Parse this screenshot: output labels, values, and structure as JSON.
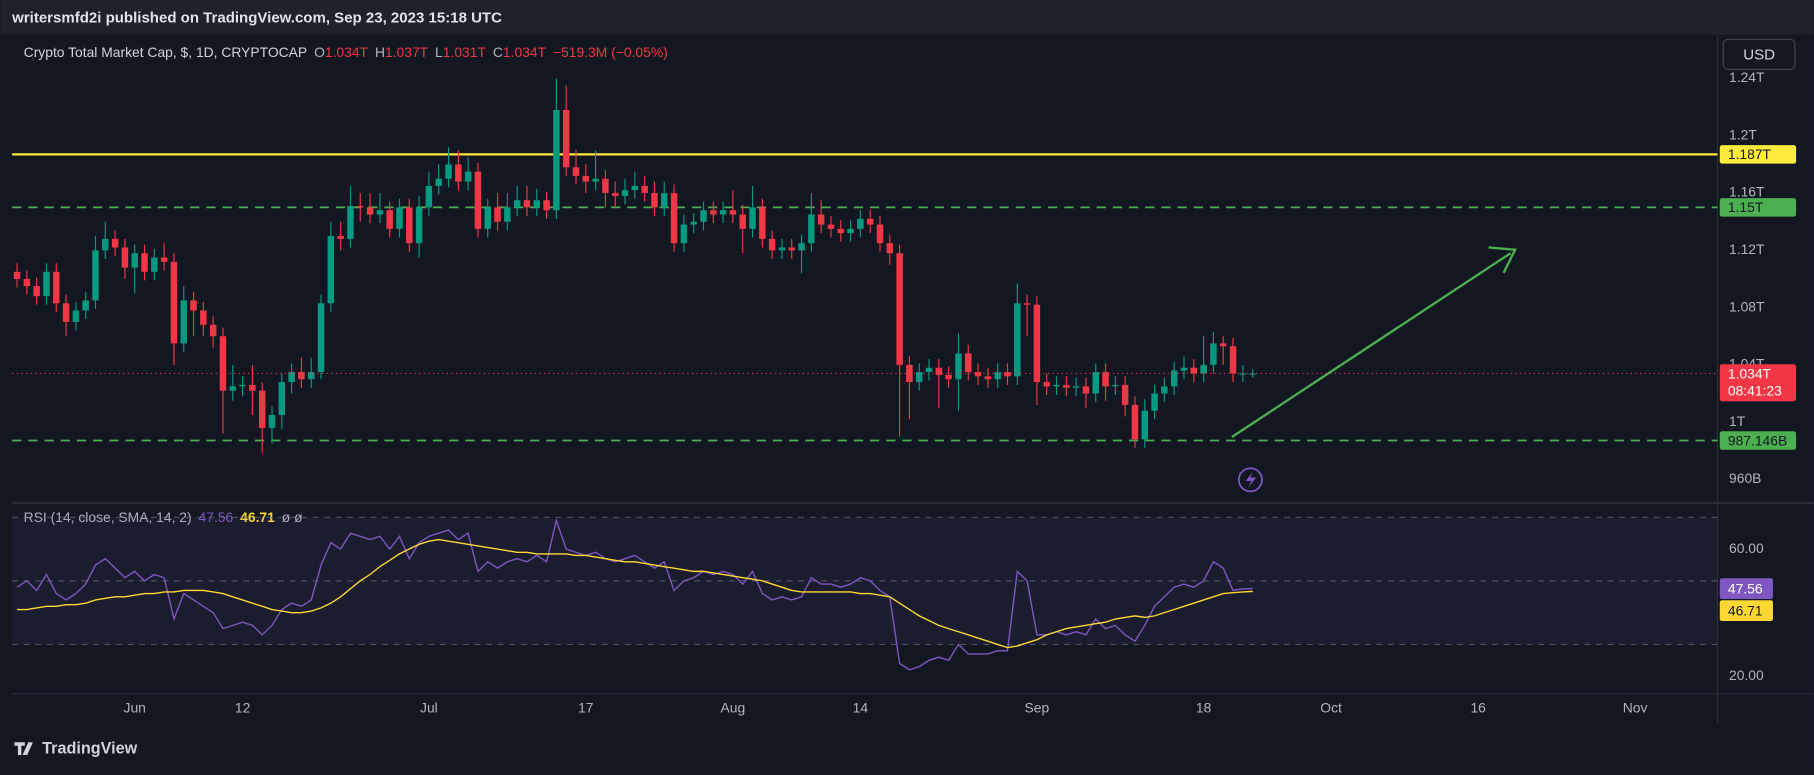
{
  "header": {
    "published": "writersmfd2i published on TradingView.com, Sep 23, 2023 15:18 UTC",
    "currency": "USD"
  },
  "footer": {
    "brand": "TradingView"
  },
  "chart_data": [
    {
      "type": "candlestick",
      "title": "Crypto Total Market Cap, $, 1D, CRYPTOCAP",
      "legend": [
        {
          "key": "O",
          "value": "1.034T"
        },
        {
          "key": "H",
          "value": "1.037T"
        },
        {
          "key": "L",
          "value": "1.031T"
        },
        {
          "key": "C",
          "value": "1.034T"
        }
      ],
      "change": "−519.3M (−0.05%)",
      "up_color": "#089981",
      "down_color": "#f23645",
      "grid": false,
      "open": [
        1.105,
        1.1,
        1.095,
        1.088,
        1.105,
        1.083,
        1.07,
        1.078,
        1.085,
        1.12,
        1.128,
        1.122,
        1.108,
        1.118,
        1.105,
        1.115,
        1.112,
        1.055,
        1.085,
        1.078,
        1.068,
        1.06,
        1.022,
        1.025,
        1.026,
        1.022,
        0.996,
        1.005,
        1.028,
        1.035,
        1.03,
        1.035,
        1.083,
        1.13,
        1.128,
        1.151,
        1.15,
        1.145,
        1.148,
        1.135,
        1.15,
        1.125,
        1.15,
        1.165,
        1.17,
        1.18,
        1.168,
        1.175,
        1.135,
        1.15,
        1.14,
        1.15,
        1.155,
        1.15,
        1.155,
        1.148,
        1.218,
        1.178,
        1.172,
        1.168,
        1.17,
        1.16,
        1.158,
        1.162,
        1.165,
        1.16,
        1.15,
        1.16,
        1.125,
        1.138,
        1.14,
        1.148,
        1.145,
        1.148,
        1.145,
        1.135,
        1.15,
        1.128,
        1.12,
        1.122,
        1.12,
        1.125,
        1.145,
        1.138,
        1.135,
        1.132,
        1.135,
        1.142,
        1.138,
        1.125,
        1.118,
        1.04,
        1.028,
        1.035,
        1.038,
        1.033,
        1.03,
        1.048,
        1.035,
        1.032,
        1.03,
        1.035,
        1.032,
        1.083,
        1.082,
        1.028,
        1.025,
        1.026,
        1.024,
        1.025,
        1.02,
        1.035,
        1.025,
        1.026,
        1.012,
        0.988,
        1.008,
        1.02,
        1.025,
        1.036,
        1.038,
        1.034,
        1.04,
        1.055,
        1.053,
        1.034,
        1.034
      ],
      "high": [
        1.111,
        1.106,
        1.101,
        1.111,
        1.111,
        1.089,
        1.084,
        1.091,
        1.13,
        1.14,
        1.134,
        1.128,
        1.124,
        1.124,
        1.121,
        1.125,
        1.118,
        1.095,
        1.091,
        1.084,
        1.074,
        1.066,
        1.04,
        1.032,
        1.04,
        1.028,
        1.011,
        1.034,
        1.041,
        1.045,
        1.045,
        1.089,
        1.14,
        1.14,
        1.165,
        1.16,
        1.16,
        1.16,
        1.154,
        1.156,
        1.156,
        1.158,
        1.175,
        1.18,
        1.192,
        1.19,
        1.185,
        1.181,
        1.156,
        1.16,
        1.16,
        1.165,
        1.165,
        1.163,
        1.161,
        1.24,
        1.235,
        1.19,
        1.18,
        1.19,
        1.176,
        1.168,
        1.17,
        1.175,
        1.172,
        1.168,
        1.168,
        1.166,
        1.145,
        1.146,
        1.154,
        1.154,
        1.154,
        1.162,
        1.152,
        1.165,
        1.156,
        1.134,
        1.128,
        1.128,
        1.131,
        1.16,
        1.155,
        1.144,
        1.141,
        1.141,
        1.148,
        1.148,
        1.144,
        1.131,
        1.124,
        1.046,
        1.041,
        1.044,
        1.044,
        1.039,
        1.062,
        1.054,
        1.041,
        1.038,
        1.041,
        1.041,
        1.097,
        1.089,
        1.088,
        1.034,
        1.032,
        1.032,
        1.031,
        1.031,
        1.041,
        1.041,
        1.032,
        1.032,
        1.018,
        1.016,
        1.026,
        1.031,
        1.042,
        1.046,
        1.044,
        1.06,
        1.063,
        1.06,
        1.059,
        1.04,
        1.037
      ],
      "low": [
        1.094,
        1.089,
        1.082,
        1.082,
        1.077,
        1.06,
        1.064,
        1.072,
        1.079,
        1.114,
        1.116,
        1.1,
        1.09,
        1.099,
        1.099,
        1.106,
        1.04,
        1.049,
        1.06,
        1.06,
        1.052,
        0.992,
        1.015,
        1.018,
        1.005,
        0.978,
        0.985,
        0.995,
        1.02,
        1.024,
        1.024,
        1.03,
        1.077,
        1.12,
        1.122,
        1.14,
        1.139,
        1.139,
        1.129,
        1.129,
        1.119,
        1.115,
        1.144,
        1.159,
        1.164,
        1.162,
        1.162,
        1.129,
        1.129,
        1.134,
        1.134,
        1.144,
        1.144,
        1.144,
        1.142,
        1.142,
        1.172,
        1.166,
        1.16,
        1.162,
        1.15,
        1.15,
        1.152,
        1.156,
        1.154,
        1.144,
        1.144,
        1.119,
        1.119,
        1.132,
        1.134,
        1.139,
        1.139,
        1.139,
        1.118,
        1.129,
        1.122,
        1.114,
        1.114,
        1.114,
        1.104,
        1.119,
        1.132,
        1.129,
        1.126,
        1.126,
        1.129,
        1.132,
        1.119,
        1.11,
        0.99,
        1.002,
        1.022,
        1.029,
        1.01,
        1.024,
        1.008,
        1.029,
        1.026,
        1.024,
        1.024,
        1.026,
        1.026,
        1.06,
        1.012,
        1.019,
        1.019,
        1.018,
        1.018,
        1.01,
        1.014,
        1.015,
        1.019,
        1.004,
        0.982,
        0.982,
        1.002,
        1.014,
        1.019,
        1.03,
        1.028,
        1.028,
        1.034,
        1.04,
        1.028,
        1.028,
        1.031
      ],
      "close": [
        1.1,
        1.095,
        1.088,
        1.105,
        1.083,
        1.07,
        1.078,
        1.085,
        1.12,
        1.128,
        1.122,
        1.108,
        1.118,
        1.105,
        1.115,
        1.112,
        1.055,
        1.085,
        1.078,
        1.068,
        1.06,
        1.022,
        1.025,
        1.026,
        1.022,
        0.996,
        1.005,
        1.028,
        1.035,
        1.03,
        1.035,
        1.083,
        1.13,
        1.128,
        1.151,
        1.15,
        1.145,
        1.148,
        1.135,
        1.15,
        1.125,
        1.15,
        1.165,
        1.17,
        1.18,
        1.168,
        1.175,
        1.135,
        1.15,
        1.14,
        1.15,
        1.155,
        1.15,
        1.155,
        1.148,
        1.218,
        1.178,
        1.172,
        1.168,
        1.17,
        1.16,
        1.158,
        1.162,
        1.165,
        1.16,
        1.15,
        1.16,
        1.125,
        1.138,
        1.14,
        1.148,
        1.145,
        1.148,
        1.145,
        1.135,
        1.15,
        1.128,
        1.12,
        1.122,
        1.12,
        1.125,
        1.145,
        1.138,
        1.135,
        1.132,
        1.135,
        1.142,
        1.138,
        1.125,
        1.118,
        1.04,
        1.028,
        1.035,
        1.038,
        1.033,
        1.03,
        1.048,
        1.035,
        1.032,
        1.03,
        1.035,
        1.032,
        1.083,
        1.082,
        1.028,
        1.025,
        1.026,
        1.024,
        1.025,
        1.02,
        1.035,
        1.025,
        1.026,
        1.012,
        0.988,
        1.008,
        1.02,
        1.025,
        1.036,
        1.038,
        1.034,
        1.04,
        1.055,
        1.053,
        1.034,
        1.034,
        1.034
      ],
      "last_price_label": "1.034T",
      "countdown": "08:41:23",
      "hlines": [
        {
          "value": 1.187,
          "label": "1.187T",
          "color": "#ffeb3b",
          "style": "solid"
        },
        {
          "value": 1.15,
          "label": "1.15T",
          "color": "#4caf50",
          "style": "dashed"
        },
        {
          "value": 0.987146,
          "label": "987.146B",
          "color": "#4caf50",
          "style": "dashed"
        }
      ],
      "ylim": [
        0.946,
        1.269
      ],
      "yticks": [
        {
          "value": 1.24,
          "label": "1.24T"
        },
        {
          "value": 1.2,
          "label": "1.2T"
        },
        {
          "value": 1.16,
          "label": "1.16T"
        },
        {
          "value": 1.12,
          "label": "1.12T"
        },
        {
          "value": 1.08,
          "label": "1.08T"
        },
        {
          "value": 1.04,
          "label": "1.04T"
        },
        {
          "value": 1,
          "label": "1T"
        },
        {
          "value": 0.96,
          "label": "960B"
        }
      ],
      "xlim": [
        -0.5,
        173.4
      ],
      "xticks": [
        {
          "value": 12,
          "label": "Jun"
        },
        {
          "value": 23,
          "label": "12"
        },
        {
          "value": 42,
          "label": "Jul"
        },
        {
          "value": 58,
          "label": "17"
        },
        {
          "value": 73,
          "label": "Aug"
        },
        {
          "value": 86,
          "label": "14"
        },
        {
          "value": 104,
          "label": "Sep"
        },
        {
          "value": 121,
          "label": "18"
        },
        {
          "value": 134,
          "label": "Oct"
        },
        {
          "value": 149,
          "label": "16"
        },
        {
          "value": 165,
          "label": "Nov"
        }
      ]
    },
    {
      "type": "line",
      "title": "RSI (14, close, SMA, 14, 2)",
      "legend_extra": "ø  ø",
      "ylim": [
        14.5,
        73.8
      ],
      "yticks": [
        {
          "value": 60,
          "label": "60.00"
        },
        {
          "value": 20,
          "label": "20.00"
        }
      ],
      "hlines": [
        70,
        50,
        30
      ],
      "series": [
        {
          "color": "#7e57c2",
          "last_label": "47.56",
          "values": [
            48,
            50,
            47,
            52,
            46,
            44,
            46,
            49,
            55,
            57,
            54,
            51,
            53,
            50,
            52,
            51,
            38,
            46,
            44,
            42,
            40,
            35,
            36,
            37,
            36,
            33,
            36,
            41,
            43,
            42,
            44,
            55,
            62,
            60,
            65,
            64,
            63,
            64,
            60,
            64,
            57,
            62,
            64,
            65,
            66,
            63,
            65,
            53,
            56,
            54,
            56,
            57,
            56,
            58,
            56,
            69,
            60,
            59,
            58,
            59,
            57,
            56,
            57,
            58,
            56,
            54,
            56,
            47,
            50,
            51,
            53,
            52,
            53,
            52,
            49,
            53,
            46,
            44,
            45,
            44,
            45,
            51,
            49,
            49,
            48,
            49,
            51,
            50,
            47,
            45,
            24,
            22,
            23,
            25,
            26,
            25,
            30,
            27,
            27,
            27,
            28,
            28,
            53,
            50,
            33,
            33,
            34,
            33,
            34,
            33,
            38,
            35,
            36,
            33,
            31,
            36,
            42,
            45,
            48,
            49,
            48,
            50,
            56,
            54,
            47,
            47.5,
            47.56
          ]
        },
        {
          "color": "#fdd835",
          "last_label": "46.71",
          "values": [
            41,
            41,
            41.5,
            42,
            42,
            42.5,
            42.5,
            43,
            44,
            44.5,
            45,
            45,
            45.5,
            46,
            46,
            46.5,
            46.5,
            47,
            47,
            47,
            46.5,
            46,
            45,
            44,
            43,
            42,
            41,
            40.5,
            40,
            40,
            40.5,
            41.5,
            43,
            45,
            47.5,
            50,
            52,
            54.5,
            56.5,
            58.5,
            60,
            61.5,
            62.5,
            63,
            62.5,
            62,
            61.5,
            61,
            60.5,
            60,
            59.5,
            59,
            59,
            58.5,
            58.5,
            58.5,
            58.5,
            58,
            58,
            57.5,
            57,
            56.5,
            56,
            56,
            55.5,
            55,
            54.5,
            54,
            53.5,
            53,
            53,
            52.5,
            52,
            51.5,
            51,
            50.5,
            50,
            49,
            48,
            47,
            46.5,
            46.5,
            46.5,
            46.5,
            46.5,
            46.5,
            46,
            46,
            45.5,
            45,
            43,
            41,
            39,
            37.5,
            36,
            35,
            34,
            33,
            32,
            31,
            30,
            29,
            29.5,
            30.5,
            31.5,
            33,
            34,
            35,
            35.5,
            36,
            36.5,
            37,
            38,
            38.5,
            39,
            38.5,
            39,
            40,
            41,
            42,
            43,
            44,
            45,
            46,
            46.3,
            46.5,
            46.71
          ]
        }
      ]
    }
  ]
}
